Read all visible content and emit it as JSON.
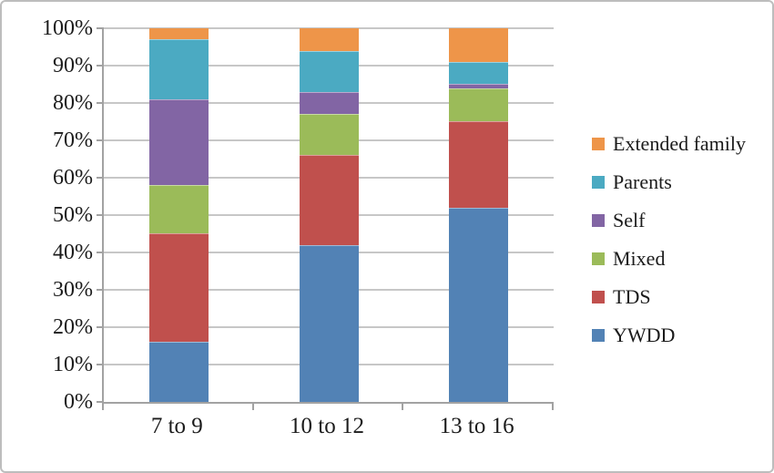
{
  "chart_data": {
    "type": "bar",
    "variant": "stacked-100-percent-column",
    "title": "",
    "xlabel": "",
    "ylabel": "",
    "categories": [
      "7 to 9",
      "10 to 12",
      "13 to 16"
    ],
    "series": [
      {
        "name": "YWDD",
        "color": "#5282B5",
        "values": [
          16,
          42,
          52
        ]
      },
      {
        "name": "TDS",
        "color": "#C0504D",
        "values": [
          29,
          24,
          23
        ]
      },
      {
        "name": "Mixed",
        "color": "#9BBB59",
        "values": [
          13,
          11,
          9
        ]
      },
      {
        "name": "Self",
        "color": "#8265A4",
        "values": [
          23,
          6,
          1
        ]
      },
      {
        "name": "Parents",
        "color": "#4BAAC2",
        "values": [
          16,
          11,
          6
        ]
      },
      {
        "name": "Extended family",
        "color": "#EE9549",
        "values": [
          3,
          6,
          9
        ]
      }
    ],
    "stack_order_bottom_to_top": [
      "YWDD",
      "TDS",
      "Mixed",
      "Self",
      "Parents",
      "Extended family"
    ],
    "y_axis": {
      "min": 0,
      "max": 100,
      "step": 10,
      "tick_labels": [
        "0%",
        "10%",
        "20%",
        "30%",
        "40%",
        "50%",
        "60%",
        "70%",
        "80%",
        "90%",
        "100%"
      ]
    },
    "grid": true,
    "legend": {
      "position": "right",
      "entries_top_to_bottom": [
        "Extended family",
        "Parents",
        "Self",
        "Mixed",
        "TDS",
        "YWDD"
      ]
    }
  }
}
